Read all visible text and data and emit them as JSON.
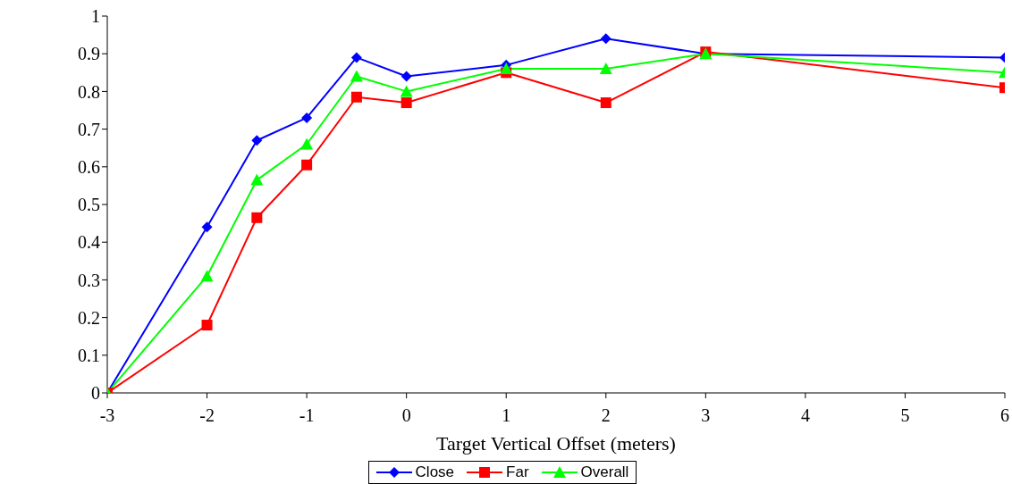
{
  "chart_data": {
    "type": "line",
    "xlabel": "Target Vertical Offset (meters)",
    "x": [
      -3,
      -2,
      -1.5,
      -1,
      -0.5,
      0,
      1,
      2,
      3,
      6
    ],
    "series": [
      {
        "name": "Close",
        "color": "#0000ff",
        "marker": "diamond",
        "values": [
          0,
          0.44,
          0.67,
          0.73,
          0.89,
          0.84,
          0.87,
          0.94,
          0.9,
          0.89
        ]
      },
      {
        "name": "Far",
        "color": "#ff0000",
        "marker": "square",
        "values": [
          0,
          0.18,
          0.465,
          0.605,
          0.785,
          0.77,
          0.85,
          0.77,
          0.905,
          0.81
        ]
      },
      {
        "name": "Overall",
        "color": "#00ff00",
        "marker": "triangle",
        "values": [
          0,
          0.31,
          0.565,
          0.66,
          0.84,
          0.8,
          0.86,
          0.86,
          0.9,
          0.85
        ]
      }
    ],
    "xlim": [
      -3,
      6
    ],
    "xticks": [
      -3,
      -2,
      -1,
      0,
      1,
      2,
      3,
      4,
      5,
      6
    ],
    "ylim": [
      0,
      1
    ],
    "yticks": [
      0,
      0.1,
      0.2,
      0.3,
      0.4,
      0.5,
      0.6,
      0.7,
      0.8,
      0.9,
      1
    ],
    "grid": false,
    "legend": "bottom",
    "line_style": "solid"
  }
}
